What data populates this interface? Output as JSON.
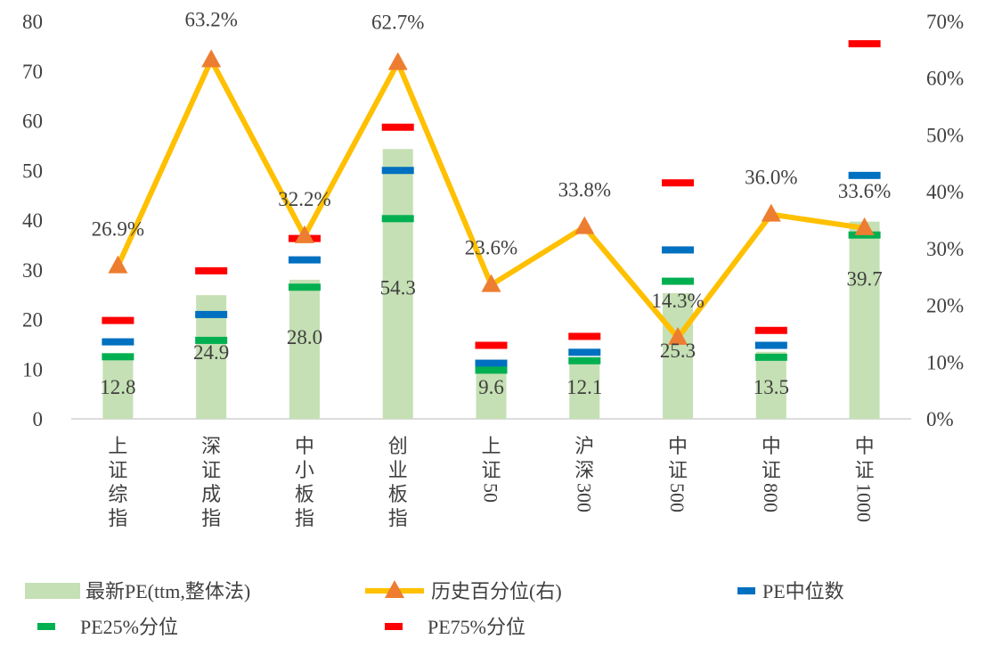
{
  "chart_data": {
    "type": "bar",
    "title": "",
    "categories": [
      "上证综指",
      "深证成指",
      "中小板指",
      "创业板指",
      "上证50",
      "沪深300",
      "中证500",
      "中证800",
      "中证1000"
    ],
    "left_axis": {
      "min": 0,
      "max": 80,
      "step": 10,
      "ticks": [
        "0",
        "10",
        "20",
        "30",
        "40",
        "50",
        "60",
        "70",
        "80"
      ]
    },
    "right_axis": {
      "min": 0,
      "max": 70,
      "step": 10,
      "ticks": [
        "0%",
        "10%",
        "20%",
        "30%",
        "40%",
        "50%",
        "60%",
        "70%"
      ]
    },
    "grid": false,
    "legend_position": "bottom",
    "series": [
      {
        "name": "最新PE(ttm,整体法)",
        "kind": "bar",
        "axis": "left",
        "color": "#c5e0b4",
        "values": [
          12.8,
          24.9,
          28.0,
          54.3,
          9.6,
          12.1,
          25.3,
          13.5,
          39.7
        ],
        "labels": [
          "12.8",
          "24.9",
          "28.0",
          "54.3",
          "9.6",
          "12.1",
          "25.3",
          "13.5",
          "39.7"
        ]
      },
      {
        "name": "历史百分位(右)",
        "kind": "line",
        "axis": "right",
        "color": "#ffc000",
        "marker_color": "#ed7d31",
        "values": [
          26.9,
          63.2,
          32.2,
          62.7,
          23.6,
          33.8,
          14.3,
          36.0,
          33.6
        ],
        "labels": [
          "26.9%",
          "63.2%",
          "32.2%",
          "62.7%",
          "23.6%",
          "33.8%",
          "14.3%",
          "36.0%",
          "33.6%"
        ]
      },
      {
        "name": "PE中位数",
        "kind": "marker",
        "axis": "left",
        "color": "#0070c0",
        "values": [
          15.5,
          21.0,
          32.0,
          50.0,
          11.2,
          13.4,
          34.0,
          14.8,
          49.0
        ]
      },
      {
        "name": "PE25%分位",
        "kind": "marker",
        "axis": "left",
        "color": "#00b050",
        "values": [
          12.5,
          15.8,
          26.5,
          40.3,
          9.8,
          11.7,
          27.7,
          12.4,
          37.0
        ]
      },
      {
        "name": "PE75%分位",
        "kind": "marker",
        "axis": "left",
        "color": "#ff0000",
        "values": [
          19.8,
          29.8,
          36.3,
          58.7,
          14.8,
          16.6,
          47.5,
          17.8,
          75.5
        ]
      }
    ]
  }
}
